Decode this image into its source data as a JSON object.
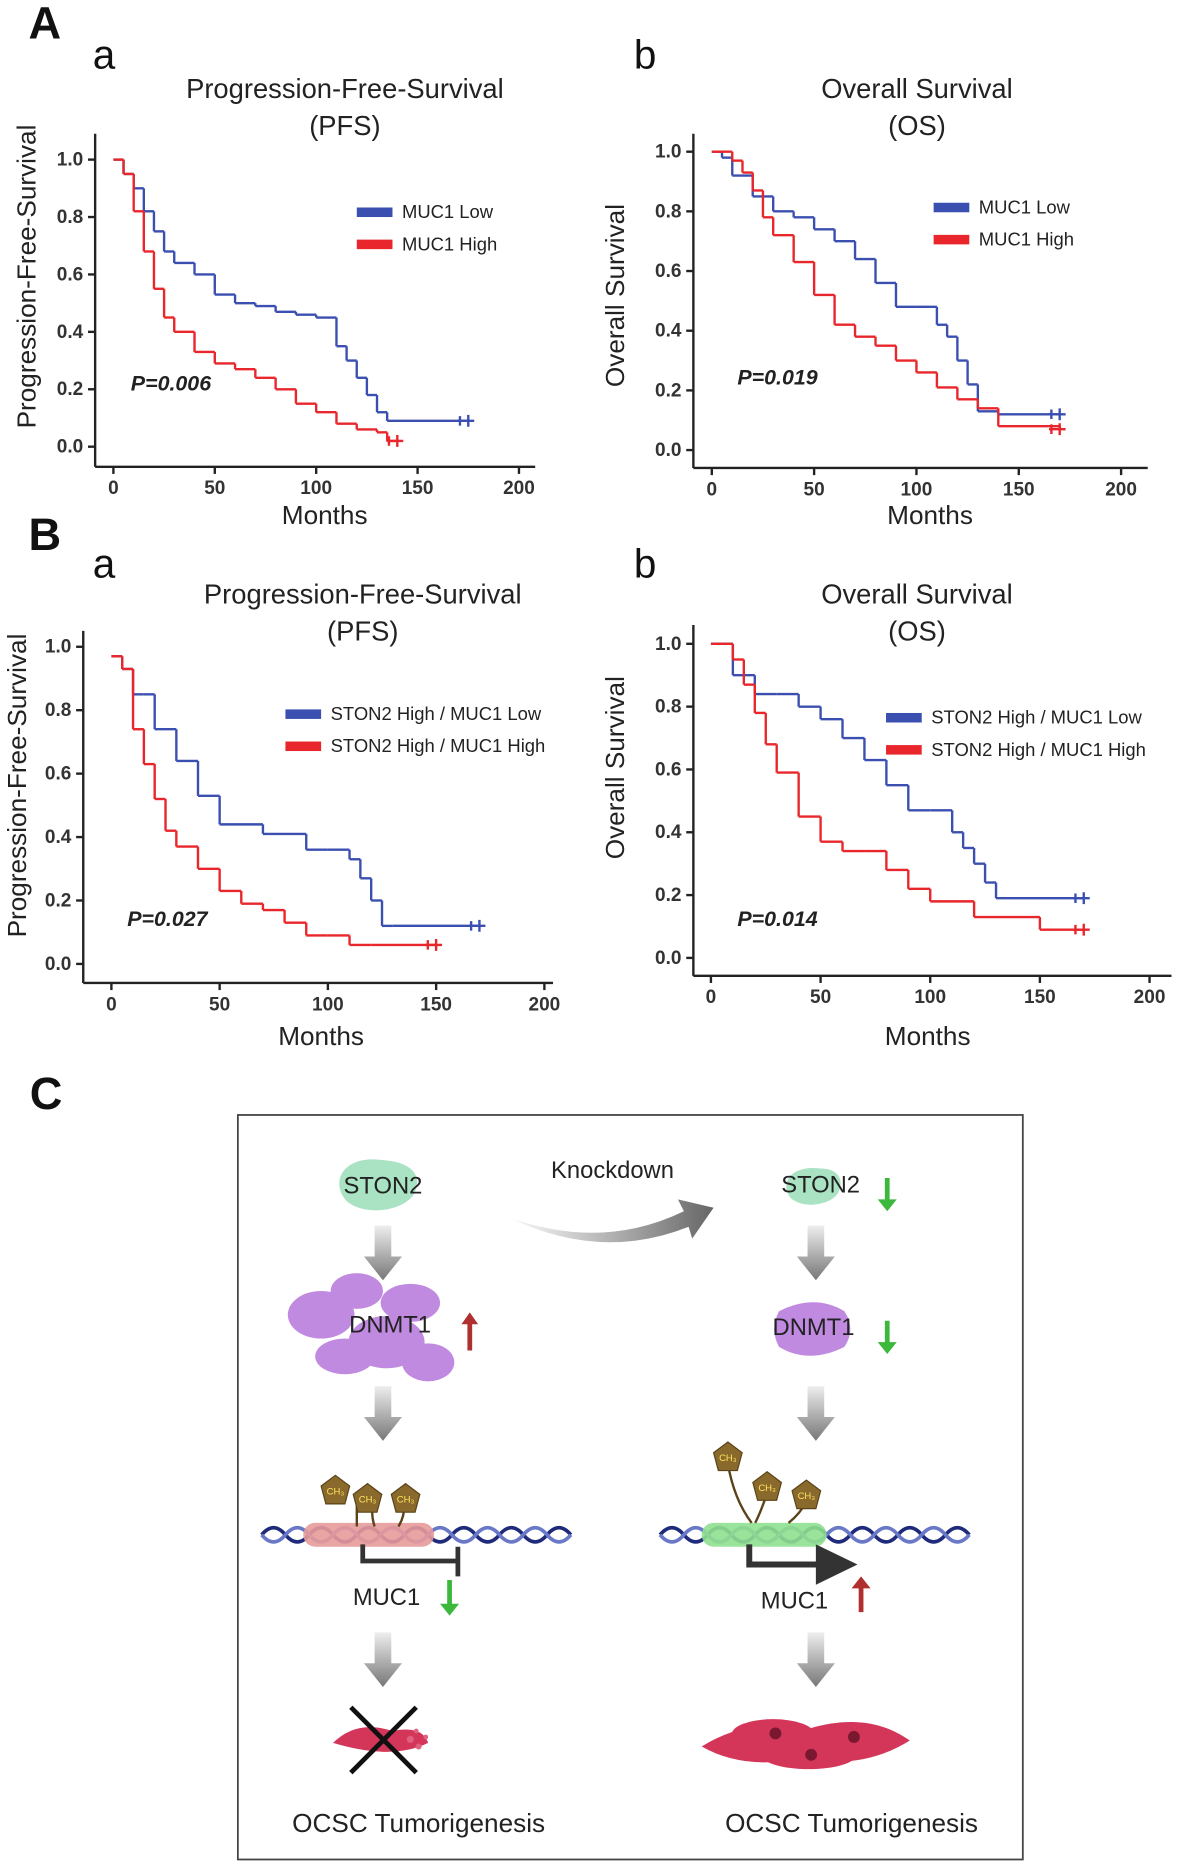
{
  "panel_labels": [
    "A",
    "a",
    "b",
    "B",
    "a",
    "b",
    "C"
  ],
  "chart_data": [
    {
      "type": "line",
      "step": true,
      "title": "Progression-Free-Survival",
      "subtitle": "(PFS)",
      "x_label": "Months",
      "y_label": "Progression-Free-Survival",
      "annotation": "P=0.006",
      "xlim": [
        -9,
        208
      ],
      "ylim": [
        -0.07,
        1.09
      ],
      "xticks": [
        0,
        50,
        100,
        150,
        200
      ],
      "yticks": [
        {
          "value": 0,
          "label": "0.0"
        },
        0.2,
        0.4,
        0.6,
        0.8,
        {
          "value": 1,
          "label": "1.0"
        }
      ],
      "series": [
        {
          "name": "MUC1 Low",
          "color": "#3b4fb0",
          "x": [
            0,
            5,
            10,
            15,
            20,
            25,
            30,
            40,
            50,
            60,
            70,
            80,
            90,
            100,
            110,
            115,
            120,
            125,
            130,
            135,
            175
          ],
          "values": [
            1.0,
            0.95,
            0.9,
            0.82,
            0.75,
            0.68,
            0.64,
            0.6,
            0.53,
            0.5,
            0.49,
            0.47,
            0.46,
            0.45,
            0.35,
            0.3,
            0.24,
            0.18,
            0.12,
            0.09,
            0.09
          ]
        },
        {
          "name": "MUC1 High",
          "color": "#e8262b",
          "x": [
            0,
            5,
            10,
            15,
            20,
            25,
            30,
            40,
            50,
            60,
            70,
            80,
            90,
            100,
            110,
            120,
            130,
            135,
            140
          ],
          "values": [
            1.0,
            0.95,
            0.82,
            0.68,
            0.55,
            0.45,
            0.4,
            0.33,
            0.29,
            0.27,
            0.24,
            0.2,
            0.15,
            0.12,
            0.08,
            0.06,
            0.05,
            0.02,
            0.02
          ]
        }
      ]
    },
    {
      "type": "line",
      "step": true,
      "title": "Overall Survival",
      "subtitle": "(OS)",
      "x_label": "Months",
      "y_label": "Overall Survival",
      "annotation": "P=0.019",
      "xlim": [
        -9,
        213
      ],
      "ylim": [
        -0.06,
        1.06
      ],
      "xticks": [
        0,
        50,
        100,
        150,
        200
      ],
      "yticks": [
        {
          "value": 0,
          "label": "0.0"
        },
        0.2,
        0.4,
        0.6,
        0.8,
        {
          "value": 1,
          "label": "1.0"
        }
      ],
      "series": [
        {
          "name": "MUC1 Low",
          "color": "#3b4fb0",
          "x": [
            0,
            5,
            10,
            20,
            30,
            40,
            50,
            60,
            70,
            80,
            90,
            100,
            110,
            115,
            120,
            125,
            130,
            140,
            170
          ],
          "values": [
            1.0,
            0.98,
            0.92,
            0.85,
            0.8,
            0.78,
            0.74,
            0.7,
            0.64,
            0.56,
            0.48,
            0.48,
            0.42,
            0.38,
            0.3,
            0.22,
            0.13,
            0.12,
            0.12
          ]
        },
        {
          "name": "MUC1 High",
          "color": "#e8262b",
          "x": [
            0,
            10,
            15,
            20,
            25,
            30,
            40,
            50,
            60,
            70,
            80,
            90,
            100,
            110,
            120,
            130,
            140,
            170
          ],
          "values": [
            1.0,
            0.97,
            0.93,
            0.87,
            0.78,
            0.72,
            0.63,
            0.52,
            0.42,
            0.38,
            0.35,
            0.3,
            0.26,
            0.21,
            0.17,
            0.14,
            0.08,
            0.07
          ]
        }
      ]
    },
    {
      "type": "line",
      "step": true,
      "title": "Progression-Free-Survival",
      "subtitle": "(PFS)",
      "x_label": "Months",
      "y_label": "Progression-Free-Survival",
      "annotation": "P=0.027",
      "xlim": [
        -13,
        204
      ],
      "ylim": [
        -0.06,
        1.05
      ],
      "xticks": [
        0,
        50,
        100,
        150,
        200
      ],
      "yticks": [
        {
          "value": 0,
          "label": "0.0"
        },
        0.2,
        0.4,
        0.6,
        0.8,
        {
          "value": 1,
          "label": "1.0"
        }
      ],
      "series": [
        {
          "name": "STON2 High / MUC1 Low",
          "color": "#3b4fb0",
          "x": [
            0,
            5,
            10,
            15,
            20,
            30,
            40,
            50,
            70,
            90,
            100,
            110,
            115,
            120,
            125,
            130,
            170
          ],
          "values": [
            0.97,
            0.93,
            0.85,
            0.85,
            0.74,
            0.64,
            0.53,
            0.44,
            0.41,
            0.36,
            0.36,
            0.33,
            0.27,
            0.2,
            0.12,
            0.12,
            0.12
          ]
        },
        {
          "name": "STON2 High / MUC1 High",
          "color": "#e8262b",
          "x": [
            0,
            5,
            10,
            15,
            20,
            25,
            30,
            40,
            50,
            60,
            70,
            80,
            90,
            100,
            110,
            120,
            150
          ],
          "values": [
            0.97,
            0.93,
            0.74,
            0.63,
            0.52,
            0.42,
            0.37,
            0.3,
            0.23,
            0.19,
            0.17,
            0.13,
            0.09,
            0.09,
            0.06,
            0.06,
            0.06
          ]
        }
      ]
    },
    {
      "type": "line",
      "step": true,
      "title": "Overall Survival",
      "subtitle": "(OS)",
      "x_label": "Months",
      "y_label": "Overall Survival",
      "annotation": "P=0.014",
      "xlim": [
        -8,
        210
      ],
      "ylim": [
        -0.057,
        1.06
      ],
      "xticks": [
        0,
        50,
        100,
        150,
        200
      ],
      "yticks": [
        {
          "value": 0,
          "label": "0.0"
        },
        0.2,
        0.4,
        0.6,
        0.8,
        {
          "value": 1,
          "label": "1.0"
        }
      ],
      "series": [
        {
          "name": "STON2 High / MUC1 Low",
          "color": "#3b4fb0",
          "x": [
            0,
            10,
            20,
            30,
            40,
            50,
            60,
            70,
            80,
            90,
            100,
            110,
            115,
            120,
            125,
            130,
            170
          ],
          "values": [
            1.0,
            0.9,
            0.84,
            0.84,
            0.8,
            0.76,
            0.7,
            0.63,
            0.55,
            0.47,
            0.47,
            0.4,
            0.35,
            0.3,
            0.24,
            0.19,
            0.19
          ]
        },
        {
          "name": "STON2 High / MUC1 High",
          "color": "#e8262b",
          "x": [
            0,
            10,
            15,
            20,
            25,
            30,
            40,
            50,
            60,
            70,
            80,
            90,
            100,
            120,
            150,
            170
          ],
          "values": [
            1.0,
            0.95,
            0.87,
            0.78,
            0.68,
            0.59,
            0.45,
            0.37,
            0.34,
            0.34,
            0.28,
            0.22,
            0.18,
            0.13,
            0.09,
            0.09
          ]
        }
      ]
    }
  ],
  "diagram": {
    "left_protein": "STON2",
    "arrow_label": "Knockdown",
    "right_protein": "STON2",
    "left_enzyme": "DNMT1",
    "right_enzyme": "DNMT1",
    "left_gene": "MUC1",
    "right_gene": "MUC1",
    "left_outcome": "OCSC Tumorigenesis",
    "right_outcome": "OCSC Tumorigenesis"
  }
}
